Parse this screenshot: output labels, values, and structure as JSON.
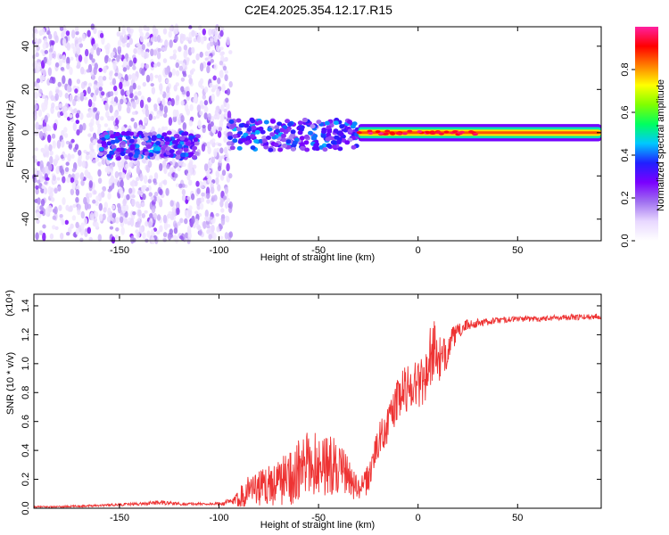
{
  "title": "C2E4.2025.354.12.17.R15",
  "colors": {
    "line": "#ee3333",
    "axis": "#000000",
    "colormap": [
      "#ffffff",
      "#e8d8ff",
      "#a070f0",
      "#7a00ff",
      "#2020ff",
      "#00c8ff",
      "#00ff60",
      "#80ff00",
      "#ffff00",
      "#ff8000",
      "#ff0000",
      "#ff20a0"
    ]
  },
  "chart_data": [
    {
      "id": "spectrogram",
      "type": "heatmap",
      "xlabel": "Height of straight line (km)",
      "ylabel": "Frequency (Hz)",
      "xlim": [
        -193,
        92
      ],
      "ylim": [
        -50,
        49
      ],
      "xticks": [
        -150,
        -100,
        -50,
        0,
        50
      ],
      "xtick_labels": [
        "-150",
        "-100",
        "-50",
        "0",
        "50"
      ],
      "yticks": [
        -40,
        -20,
        0,
        20,
        40
      ],
      "ytick_labels": [
        "-40",
        "-20",
        "0",
        "20",
        "40"
      ],
      "colorbar": {
        "label": "Normalized spectral amplitude",
        "range": [
          0,
          1
        ],
        "ticks": [
          0.0,
          0.2,
          0.4,
          0.6,
          0.8
        ],
        "tick_labels": [
          "0.0",
          "0.2",
          "0.4",
          "0.6",
          "0.8"
        ]
      },
      "regions": [
        {
          "description": "scattered noise speckle",
          "x": [
            -193,
            -94
          ],
          "freq": [
            -50,
            49
          ],
          "amplitude": 0.2
        },
        {
          "description": "weak echo band",
          "x": [
            -160,
            -110
          ],
          "freq": [
            -12,
            0
          ],
          "amplitude": 0.3
        },
        {
          "description": "echo band",
          "x": [
            -95,
            -30
          ],
          "freq": [
            -8,
            6
          ],
          "amplitude": 0.3
        },
        {
          "description": "strong echo trace",
          "x": [
            -30,
            92
          ],
          "freq": [
            -2,
            2
          ],
          "amplitude": 0.85
        }
      ]
    },
    {
      "id": "snr",
      "type": "line",
      "xlabel": "Height of straight line (km)",
      "ylabel": "SNR (10 * v/v)",
      "multiplier": "(x10⁴)",
      "xlim": [
        -193,
        92
      ],
      "ylim": [
        0,
        1.48
      ],
      "xticks": [
        -150,
        -100,
        -50,
        0,
        50
      ],
      "xtick_labels": [
        "-150",
        "-100",
        "-50",
        "0",
        "50"
      ],
      "yticks": [
        0.0,
        0.2,
        0.4,
        0.6,
        0.8,
        1.0,
        1.2,
        1.4
      ],
      "ytick_labels": [
        "0.0",
        "0.2",
        "0.4",
        "0.6",
        "0.8",
        "1.0",
        "1.2",
        "1.4"
      ],
      "series": [
        {
          "name": "SNR",
          "x": [
            -193,
            -180,
            -160,
            -140,
            -130,
            -120,
            -100,
            -92,
            -88,
            -84,
            -80,
            -75,
            -70,
            -65,
            -60,
            -55,
            -50,
            -45,
            -40,
            -35,
            -30,
            -25,
            -22,
            -18,
            -15,
            -12,
            -8,
            -4,
            0,
            4,
            7,
            10,
            12,
            16,
            20,
            25,
            30,
            35,
            40,
            50,
            60,
            70,
            80,
            92
          ],
          "values": [
            0.01,
            0.01,
            0.02,
            0.03,
            0.04,
            0.03,
            0.03,
            0.05,
            0.1,
            0.15,
            0.14,
            0.16,
            0.18,
            0.22,
            0.25,
            0.3,
            0.32,
            0.3,
            0.28,
            0.22,
            0.12,
            0.2,
            0.38,
            0.52,
            0.58,
            0.7,
            0.8,
            0.85,
            0.87,
            0.92,
            1.1,
            1.05,
            1.0,
            1.15,
            1.22,
            1.27,
            1.28,
            1.29,
            1.3,
            1.31,
            1.31,
            1.32,
            1.32,
            1.33
          ],
          "noise": [
            0.005,
            0.006,
            0.008,
            0.01,
            0.015,
            0.01,
            0.01,
            0.03,
            0.1,
            0.1,
            0.12,
            0.14,
            0.16,
            0.2,
            0.22,
            0.24,
            0.22,
            0.22,
            0.18,
            0.14,
            0.08,
            0.1,
            0.12,
            0.12,
            0.13,
            0.15,
            0.16,
            0.18,
            0.18,
            0.2,
            0.22,
            0.2,
            0.15,
            0.1,
            0.05,
            0.04,
            0.03,
            0.025,
            0.02,
            0.02,
            0.02,
            0.02,
            0.02,
            0.02
          ]
        }
      ]
    }
  ]
}
